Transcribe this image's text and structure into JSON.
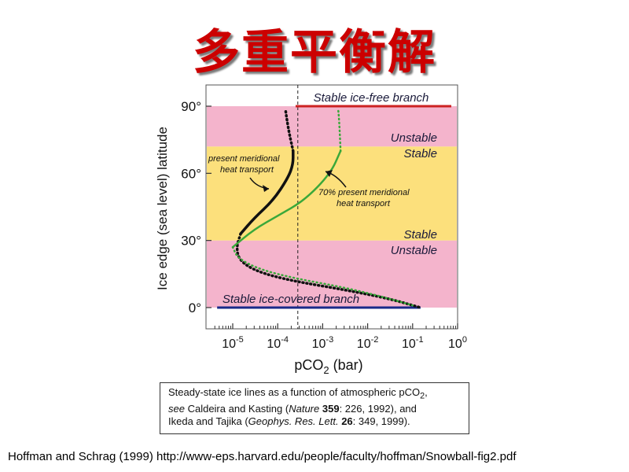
{
  "title": "多重平衡解",
  "chart_data": {
    "type": "line",
    "xlabel": "pCO2 (bar)",
    "ylabel": "Ice edge (sea level) latitude",
    "x_scale": "log",
    "xlim_exponent": [
      -5.6,
      0
    ],
    "x_ticks": [
      "10-5",
      "10-4",
      "10-3",
      "10-2",
      "10-1",
      "100"
    ],
    "ylim": [
      -5,
      92
    ],
    "y_ticks": [
      "0°",
      "30°",
      "60°",
      "90°"
    ],
    "bands": [
      {
        "from": 0,
        "to": 30,
        "label": "Unstable",
        "color": "#f4b4cc"
      },
      {
        "from": 30,
        "to": 72,
        "label": "Stable",
        "color": "#fce07c"
      },
      {
        "from": 72,
        "to": 90,
        "label": "Unstable",
        "color": "#f4b4cc"
      }
    ],
    "band_labels": {
      "upper_unstable": "Unstable",
      "upper_stable": "Stable",
      "lower_stable": "Stable",
      "lower_unstable": "Unstable"
    },
    "vertical_reference_line_pco2": 0.00028,
    "branches": [
      {
        "name": "Stable ice-free branch",
        "latitude": 90,
        "pco2_from": 0.00025,
        "pco2_to": 1,
        "color": "#cc2222"
      },
      {
        "name": "Stable ice-covered branch",
        "latitude": 0,
        "pco2_from": 4.5e-06,
        "pco2_to": 0.15,
        "color": "#1a2a8a"
      }
    ],
    "series": [
      {
        "name": "present meridional heat transport",
        "color": "#111111",
        "stable_segment": [
          [
            1.5e-05,
            33
          ],
          [
            3e-05,
            40
          ],
          [
            8e-05,
            48
          ],
          [
            0.00017,
            58
          ],
          [
            0.00022,
            64
          ],
          [
            0.00022,
            70
          ]
        ],
        "unstable_upper_segment": [
          [
            0.00022,
            70
          ],
          [
            0.00018,
            78
          ],
          [
            0.00016,
            84
          ],
          [
            0.00015,
            88
          ]
        ],
        "unstable_lower_segment": [
          [
            1.5e-05,
            33
          ],
          [
            1.2e-05,
            27
          ],
          [
            1.4e-05,
            21
          ],
          [
            3.5e-05,
            16
          ],
          [
            0.0002,
            12
          ],
          [
            0.003,
            8
          ],
          [
            0.03,
            4
          ],
          [
            0.15,
            0
          ]
        ]
      },
      {
        "name": "70% present meridional heat transport",
        "color": "#3aa83a",
        "stable_segment": [
          [
            1e-05,
            27
          ],
          [
            3e-05,
            35
          ],
          [
            0.0001,
            41
          ],
          [
            0.0004,
            48
          ],
          [
            0.0015,
            60
          ],
          [
            0.0025,
            70
          ]
        ],
        "unstable_upper_segment": [
          [
            0.0025,
            70
          ],
          [
            0.0024,
            78
          ],
          [
            0.0023,
            85
          ],
          [
            0.0022,
            89
          ]
        ],
        "unstable_lower_segment": [
          [
            1e-05,
            27
          ],
          [
            1.3e-05,
            22
          ],
          [
            4e-05,
            17
          ],
          [
            0.00025,
            13
          ],
          [
            0.003,
            9
          ],
          [
            0.02,
            5
          ],
          [
            0.1,
            1
          ]
        ]
      }
    ],
    "annotations": [
      {
        "text": "present meridional",
        "line2": "heat transport",
        "for": "present meridional heat transport"
      },
      {
        "text": "70% present meridional",
        "line2": "heat transport",
        "for": "70% present meridional heat transport"
      }
    ]
  },
  "caption": {
    "line1_text": "Steady-state ice lines as a function of atmospheric pCO",
    "line1_sub": "2",
    "line1_end": ",",
    "line2_see": "see",
    "line2_mid": " Caldeira and Kasting (",
    "line2_journal": "Nature",
    "line2_vol": "359",
    "line2_end": ": 226, 1992), and",
    "line3_start": "Ikeda and Tajika (",
    "line3_journal": "Geophys. Res. Lett.",
    "line3_vol": "26",
    "line3_end": ": 349, 1999)."
  },
  "source": "Hoffman and Schrag (1999) http://www-eps.harvard.edu/people/faculty/hoffman/Snowball-fig2.pdf"
}
